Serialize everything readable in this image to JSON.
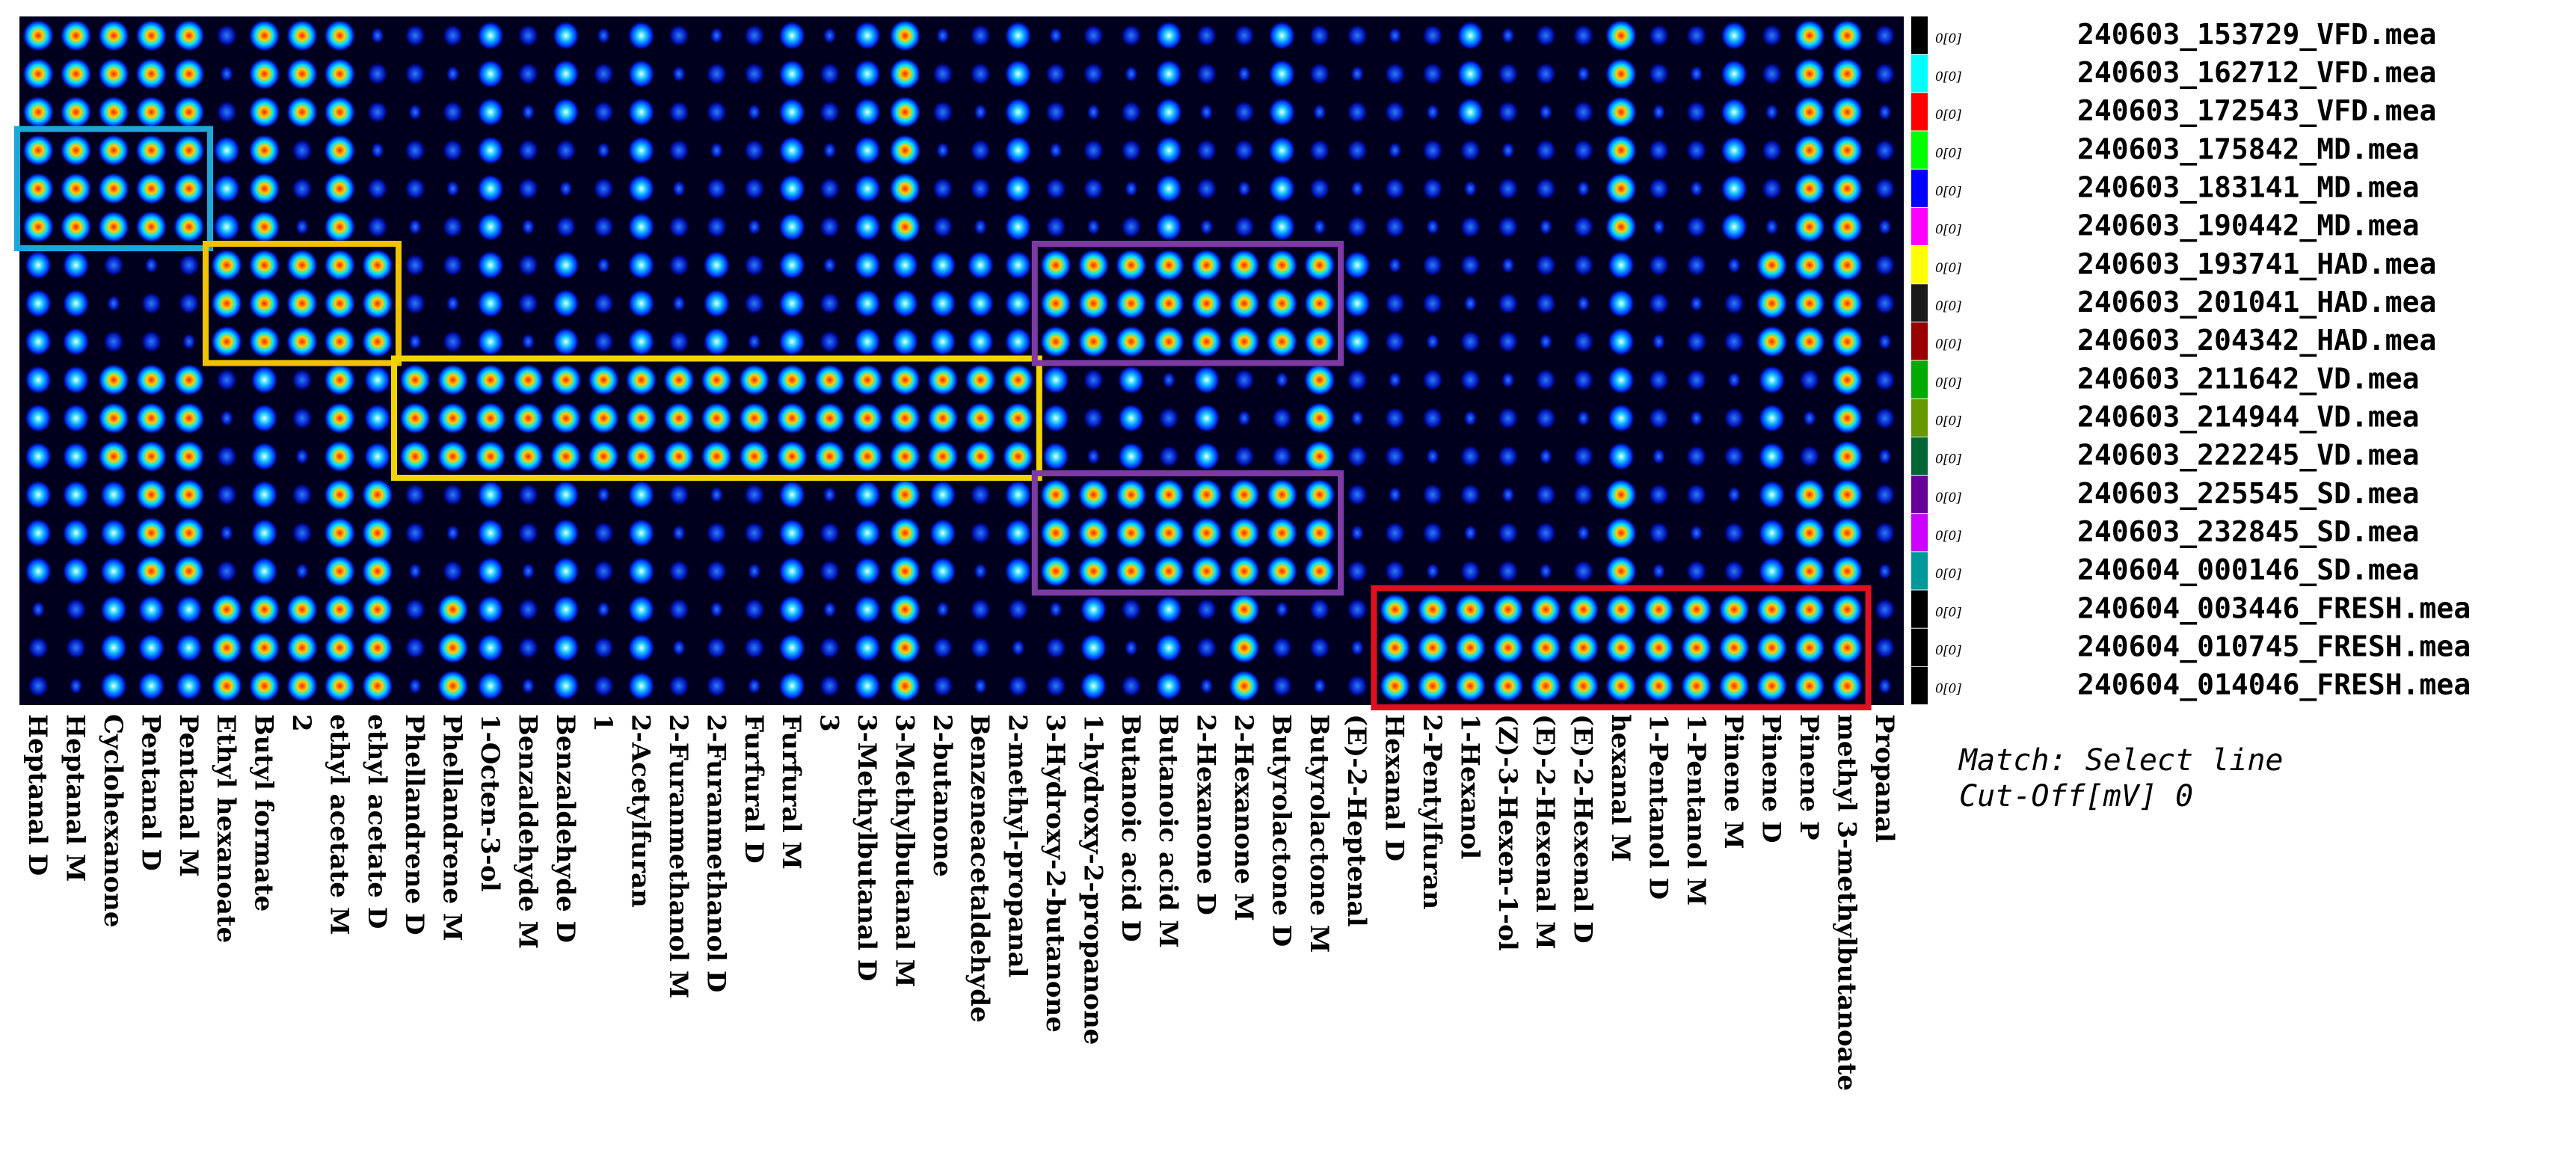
{
  "chart_data": {
    "type": "heatmap",
    "title": "",
    "xlabel": "",
    "ylabel": "",
    "columns": [
      "Heptanal D",
      "Heptanal M",
      "Cyclohexanone",
      "Pentanal D",
      "Pentanal M",
      "Ethyl hexanoate",
      "Butyl formate",
      "2",
      "ethyl acetate M",
      "ethyl acetate D",
      "Phellandrene D",
      "Phellandrene M",
      "1-Octen-3-ol",
      "Benzaldehyde M",
      "Benzaldehyde D",
      "1",
      "2-Acetylfuran",
      "2-Furanmethanol M",
      "2-Furanmethanol D",
      "Furfural D",
      "Furfural M",
      "3",
      "3-Methylbutanal D",
      "3-Methylbutanal M",
      "2-butanone",
      "Benzeneacetaldehyde",
      "2-methyl-propanal",
      "3-Hydroxy-2-butanone",
      "1-hydroxy-2-propanone",
      "Butanoic acid D",
      "Butanoic acid M",
      "2-Hexanone D",
      "2-Hexanone M",
      "Butyrolactone D",
      "Butyrolactone M",
      "(E)-2-Heptenal",
      "Hexanal D",
      "2-Pentylfuran",
      "1-Hexanol",
      "(Z)-3-Hexen-1-ol",
      "(E)-2-Hexenal M",
      "(E)-2-Hexenal D",
      "hexanal M",
      "1-Pentanol D",
      "1-Pentanol M",
      "Pinene M",
      "Pinene D",
      "Pinene P",
      "methyl 3-methylbutanoate",
      "Propanal"
    ],
    "rows": [
      "240603_153729_VFD.mea",
      "240603_162712_VFD.mea",
      "240603_172543_VFD.mea",
      "240603_175842_MD.mea",
      "240603_183141_MD.mea",
      "240603_190442_MD.mea",
      "240603_193741_HAD.mea",
      "240603_201041_HAD.mea",
      "240603_204342_HAD.mea",
      "240603_211642_VD.mea",
      "240603_214944_VD.mea",
      "240603_222245_VD.mea",
      "240603_225545_SD.mea",
      "240603_232845_SD.mea",
      "240604_000146_SD.mea",
      "240604_003446_FRESH.mea",
      "240604_010745_FRESH.mea",
      "240604_014046_FRESH.mea"
    ],
    "row_tag": "0[0]",
    "row_colors": [
      "#000000",
      "#00ffff",
      "#ff0000",
      "#00ff00",
      "#0000ff",
      "#ff00ff",
      "#ffff00",
      "#1a1a1a",
      "#990000",
      "#00aa00",
      "#669900",
      "#006633",
      "#660099",
      "#cc00ff",
      "#009999",
      "#000000",
      "#000000",
      "#000000"
    ],
    "groups": [
      {
        "rows": [
          0,
          1,
          2
        ],
        "strong": [
          0,
          1,
          2,
          3,
          4,
          6,
          7,
          8,
          23,
          42,
          47,
          48
        ],
        "mid": [
          12,
          14,
          16,
          20,
          22,
          26,
          30,
          33,
          38,
          45
        ],
        "highlight": []
      },
      {
        "rows": [
          3,
          4,
          5
        ],
        "strong": [
          0,
          1,
          2,
          3,
          4,
          6,
          8,
          23,
          42,
          47,
          48
        ],
        "mid": [
          5,
          12,
          16,
          20,
          22,
          26,
          30,
          33,
          45
        ],
        "highlight": [
          0,
          1,
          2,
          3,
          4
        ]
      },
      {
        "rows": [
          6,
          7,
          8
        ],
        "strong": [
          5,
          6,
          7,
          8,
          9,
          27,
          28,
          29,
          30,
          31,
          32,
          33,
          34,
          46,
          47,
          48
        ],
        "mid": [
          0,
          1,
          12,
          14,
          16,
          18,
          20,
          22,
          23,
          24,
          25,
          26,
          35,
          42
        ],
        "highlight": [
          5,
          6,
          7,
          8,
          9
        ]
      },
      {
        "rows": [
          9,
          10,
          11
        ],
        "strong": [
          2,
          3,
          4,
          8,
          10,
          11,
          12,
          13,
          14,
          15,
          16,
          17,
          18,
          19,
          20,
          21,
          22,
          23,
          24,
          25,
          26,
          34,
          48
        ],
        "mid": [
          0,
          1,
          6,
          9,
          27,
          29,
          31,
          42,
          46
        ],
        "highlight": [
          10,
          11,
          12,
          13,
          14,
          15,
          16,
          17,
          18,
          19,
          20,
          21,
          22,
          23,
          24,
          25,
          26
        ]
      },
      {
        "rows": [
          12,
          13,
          14
        ],
        "strong": [
          3,
          4,
          8,
          9,
          23,
          27,
          28,
          29,
          30,
          31,
          32,
          33,
          34,
          42,
          47,
          48
        ],
        "mid": [
          0,
          1,
          2,
          6,
          12,
          14,
          16,
          20,
          22,
          24,
          26,
          46
        ],
        "highlight": [
          27,
          28,
          29,
          30,
          31,
          32,
          33,
          34
        ]
      },
      {
        "rows": [
          15,
          16,
          17
        ],
        "strong": [
          5,
          6,
          7,
          8,
          9,
          11,
          23,
          32,
          36,
          37,
          38,
          39,
          40,
          41,
          42,
          43,
          44,
          45,
          46,
          47,
          48
        ],
        "mid": [
          2,
          3,
          4,
          12,
          14,
          16,
          20,
          22,
          28,
          30
        ],
        "highlight": [
          36,
          37,
          38,
          39,
          40,
          41,
          42,
          43,
          44,
          45,
          46,
          47,
          48
        ]
      }
    ],
    "boxes": [
      {
        "color": "#1ea7d6",
        "rows": [
          3,
          5
        ],
        "cols": [
          0,
          4
        ]
      },
      {
        "color": "#f2c200",
        "rows": [
          6,
          8
        ],
        "cols": [
          5,
          9
        ]
      },
      {
        "color": "#f2d400",
        "rows": [
          9,
          11
        ],
        "cols": [
          10,
          26
        ]
      },
      {
        "color": "#7d3aa3",
        "rows": [
          6,
          8
        ],
        "cols": [
          27,
          34
        ]
      },
      {
        "color": "#7d3aa3",
        "rows": [
          12,
          14
        ],
        "cols": [
          27,
          34
        ]
      },
      {
        "color": "#e01020",
        "rows": [
          15,
          17
        ],
        "cols": [
          36,
          48
        ]
      }
    ],
    "legend": "right",
    "grid": false
  },
  "notes": {
    "match": "Match: Select line",
    "cutoff": "Cut-Off[mV] 0"
  }
}
